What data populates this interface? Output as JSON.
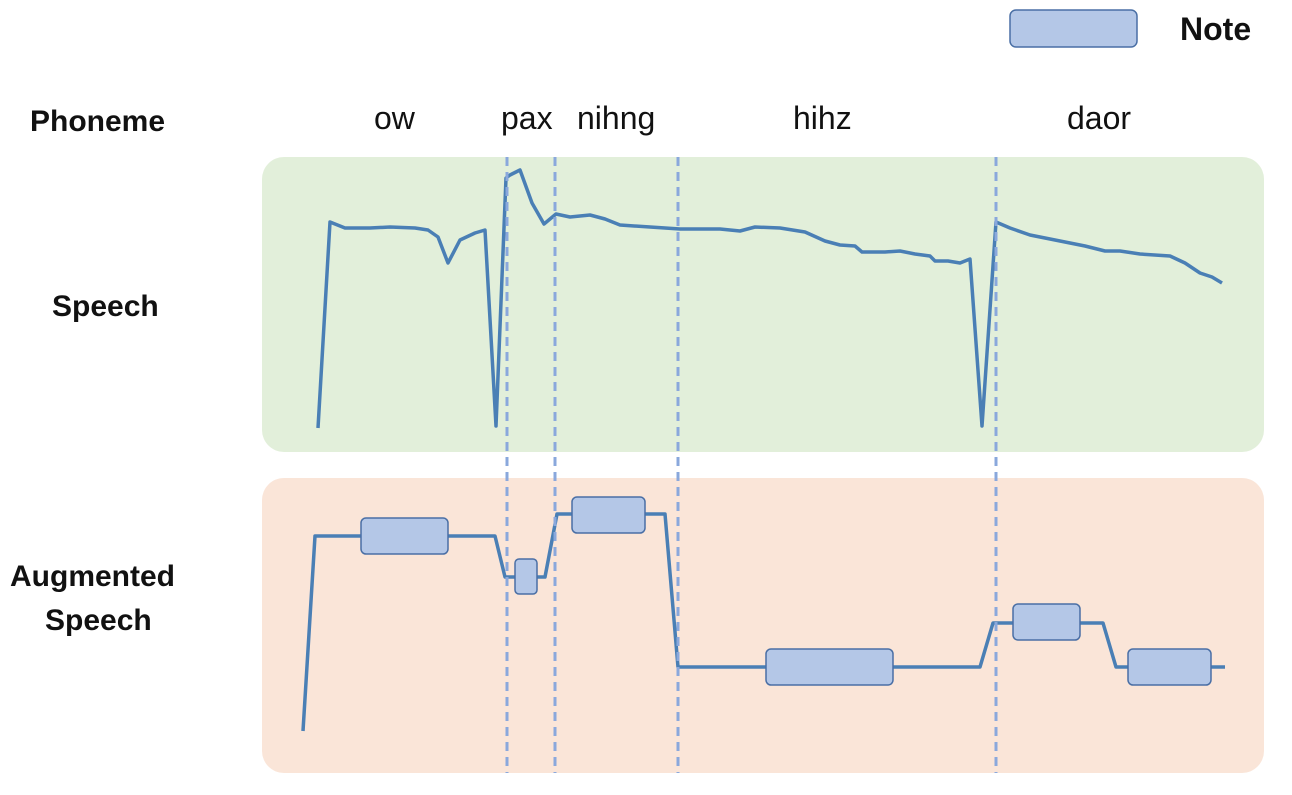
{
  "legend": {
    "label": "Note",
    "color": "#b4c7e7"
  },
  "row_labels": {
    "phoneme": "Phoneme",
    "speech": "Speech",
    "augmented_line1": "Augmented",
    "augmented_line2": "Speech"
  },
  "phonemes": [
    "ow",
    "pax",
    "nihng",
    "hihz",
    "daor"
  ],
  "colors": {
    "speech_panel": "#e2efda",
    "augmented_panel": "#fae5d8",
    "curve": "#4a7fb5",
    "boundary": "#8aa8dc",
    "note_fill": "#b4c7e7",
    "note_border": "#4a6fa5"
  }
}
